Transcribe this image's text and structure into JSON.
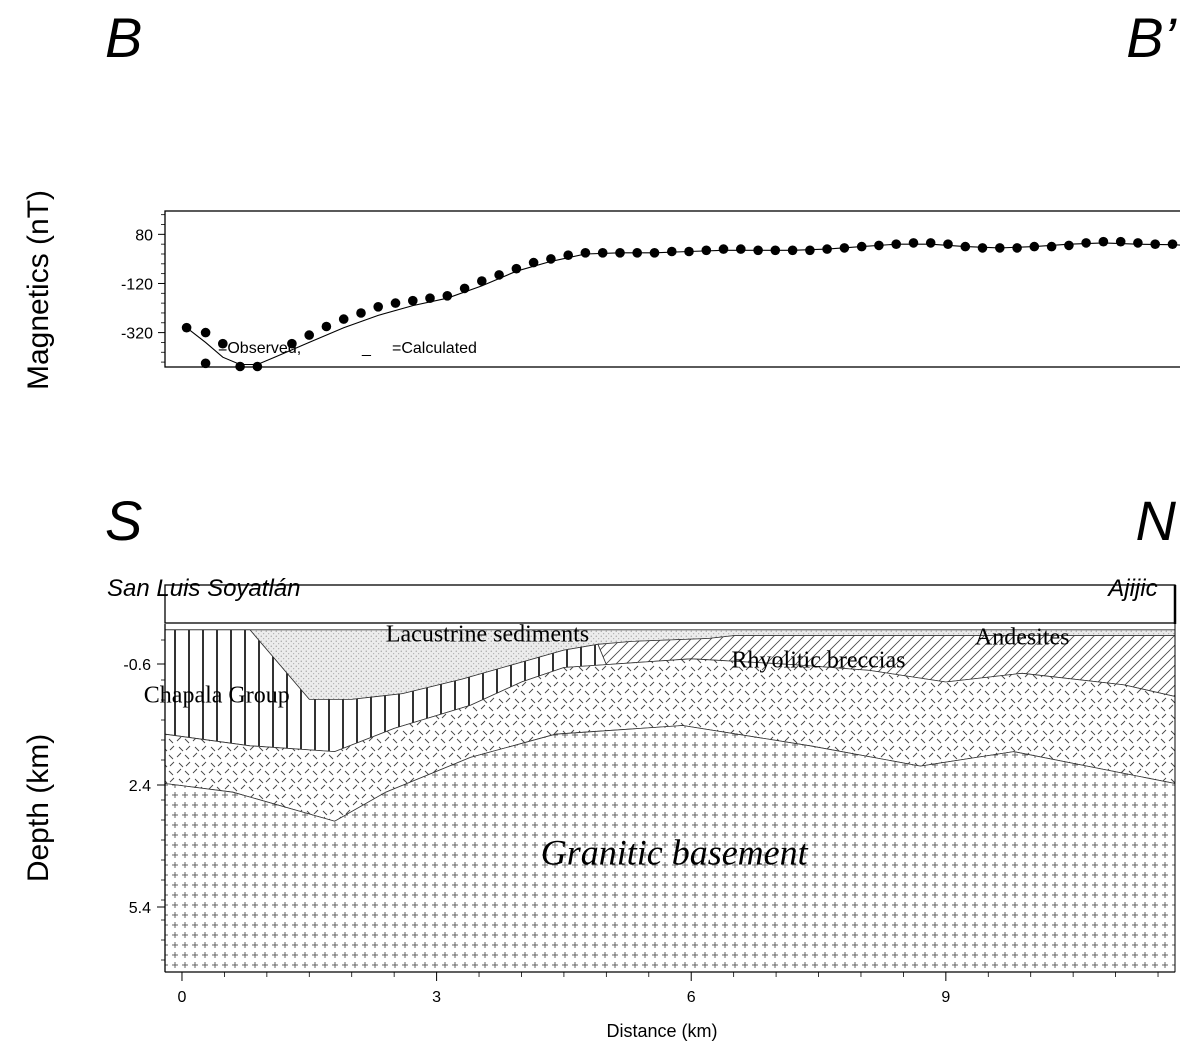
{
  "section_labels": {
    "start": "B",
    "end": "B’",
    "south": "S",
    "north": "N"
  },
  "chart_data": [
    {
      "type": "scatter",
      "ylabel": "Magnetics (nT)",
      "xlim": [
        -0.25,
        11.6
      ],
      "ylim": [
        -460,
        175
      ],
      "yticks": [
        80,
        -120,
        -320
      ],
      "legend": {
        "observed": "=Observed,",
        "calculated_marker": "_",
        "calculated": "=Calculated",
        "placement": "bottom-left"
      },
      "series": [
        {
          "name": "Observed",
          "style": "filled circles",
          "points": [
            [
              0.0,
              -300
            ],
            [
              0.22,
              -320
            ],
            [
              0.22,
              -445
            ],
            [
              0.42,
              -365
            ],
            [
              0.62,
              -458
            ],
            [
              0.82,
              -458
            ],
            [
              1.22,
              -365
            ],
            [
              1.42,
              -330
            ],
            [
              1.62,
              -295
            ],
            [
              1.82,
              -265
            ],
            [
              2.02,
              -240
            ],
            [
              2.22,
              -215
            ],
            [
              2.42,
              -200
            ],
            [
              2.62,
              -190
            ],
            [
              2.82,
              -180
            ],
            [
              3.02,
              -170
            ],
            [
              3.22,
              -140
            ],
            [
              3.42,
              -110
            ],
            [
              3.62,
              -85
            ],
            [
              3.82,
              -60
            ],
            [
              4.02,
              -35
            ],
            [
              4.22,
              -20
            ],
            [
              4.42,
              -5
            ],
            [
              4.62,
              5
            ],
            [
              4.82,
              5
            ],
            [
              5.02,
              5
            ],
            [
              5.22,
              5
            ],
            [
              5.42,
              5
            ],
            [
              5.62,
              10
            ],
            [
              5.82,
              10
            ],
            [
              6.02,
              15
            ],
            [
              6.22,
              20
            ],
            [
              6.42,
              20
            ],
            [
              6.62,
              15
            ],
            [
              6.82,
              15
            ],
            [
              7.02,
              15
            ],
            [
              7.22,
              15
            ],
            [
              7.42,
              20
            ],
            [
              7.62,
              25
            ],
            [
              7.82,
              30
            ],
            [
              8.02,
              35
            ],
            [
              8.22,
              40
            ],
            [
              8.42,
              45
            ],
            [
              8.62,
              45
            ],
            [
              8.82,
              40
            ],
            [
              9.02,
              30
            ],
            [
              9.22,
              25
            ],
            [
              9.42,
              25
            ],
            [
              9.62,
              25
            ],
            [
              9.82,
              30
            ],
            [
              10.02,
              30
            ],
            [
              10.22,
              35
            ],
            [
              10.42,
              45
            ],
            [
              10.62,
              50
            ],
            [
              10.82,
              50
            ],
            [
              11.02,
              45
            ],
            [
              11.22,
              40
            ],
            [
              11.42,
              40
            ],
            [
              11.62,
              35
            ],
            [
              11.82,
              30
            ],
            [
              12.02,
              25
            ]
          ]
        },
        {
          "name": "Calculated",
          "style": "thin line",
          "points": [
            [
              0.0,
              -300
            ],
            [
              0.22,
              -360
            ],
            [
              0.42,
              -420
            ],
            [
              0.62,
              -450
            ],
            [
              0.82,
              -450
            ],
            [
              1.02,
              -420
            ],
            [
              1.42,
              -360
            ],
            [
              1.82,
              -300
            ],
            [
              2.22,
              -250
            ],
            [
              2.62,
              -210
            ],
            [
              3.02,
              -180
            ],
            [
              3.42,
              -130
            ],
            [
              3.82,
              -70
            ],
            [
              4.22,
              -30
            ],
            [
              4.62,
              0
            ],
            [
              5.02,
              5
            ],
            [
              5.42,
              5
            ],
            [
              5.82,
              10
            ],
            [
              6.22,
              15
            ],
            [
              6.62,
              15
            ],
            [
              7.02,
              15
            ],
            [
              7.42,
              20
            ],
            [
              7.82,
              30
            ],
            [
              8.22,
              40
            ],
            [
              8.62,
              40
            ],
            [
              9.02,
              30
            ],
            [
              9.42,
              25
            ],
            [
              9.82,
              30
            ],
            [
              10.22,
              40
            ],
            [
              10.62,
              45
            ],
            [
              11.02,
              40
            ],
            [
              11.42,
              38
            ],
            [
              11.82,
              30
            ],
            [
              12.02,
              25
            ]
          ]
        }
      ]
    },
    {
      "type": "area",
      "subtype": "geologic cross-section",
      "ylabel": "Depth (km)",
      "xlabel": "Distance (km)",
      "xlim": [
        -0.2,
        11.7
      ],
      "xticks": [
        0,
        3,
        6,
        9
      ],
      "ylim": [
        0.5,
        6.5
      ],
      "y_inverted": true,
      "yticks": [
        -0.6,
        2.4,
        5.4
      ],
      "y_tick_labels": [
        "-0.6",
        "2.4",
        "5.4"
      ],
      "localities": [
        {
          "name": "San Luis Soyatlán",
          "x": 0.0
        },
        {
          "name": "Ajijic",
          "x": 11.2
        }
      ],
      "units": [
        {
          "name": "Lacustrine sediments",
          "pattern": "fine stipple",
          "label_at": [
            3.6,
            0.8
          ],
          "top": [
            [
              -0.2,
              0.6
            ],
            [
              11.7,
              0.6
            ]
          ],
          "bottom": [
            [
              0.8,
              0.6
            ],
            [
              1.5,
              1.8
            ],
            [
              2.0,
              1.8
            ],
            [
              2.6,
              1.7
            ],
            [
              3.3,
              1.45
            ],
            [
              3.9,
              1.2
            ],
            [
              4.5,
              0.95
            ],
            [
              4.9,
              0.85
            ],
            [
              5.0,
              0.85
            ],
            [
              5.3,
              0.8
            ],
            [
              6.2,
              0.75
            ],
            [
              6.5,
              0.7
            ],
            [
              11.7,
              0.7
            ]
          ]
        },
        {
          "name": "Andesites",
          "pattern": "diagonal hatch",
          "label_at": [
            9.9,
            0.85
          ],
          "top": [
            [
              4.9,
              0.85
            ],
            [
              5.3,
              0.8
            ],
            [
              6.2,
              0.75
            ],
            [
              6.5,
              0.7
            ],
            [
              11.7,
              0.7
            ]
          ],
          "bottom": [
            [
              4.9,
              0.85
            ],
            [
              5.0,
              1.2
            ],
            [
              6.0,
              1.1
            ],
            [
              7.2,
              1.2
            ],
            [
              8.1,
              1.3
            ],
            [
              9.0,
              1.5
            ],
            [
              9.9,
              1.35
            ],
            [
              11.1,
              1.55
            ],
            [
              11.7,
              1.75
            ]
          ]
        },
        {
          "name": "Chapala Group",
          "pattern": "vertical lines",
          "label_at": [
            -0.45,
            1.85
          ],
          "top": [
            [
              -0.2,
              0.6
            ],
            [
              0.8,
              0.6
            ],
            [
              1.5,
              1.8
            ],
            [
              2.0,
              1.8
            ],
            [
              2.6,
              1.7
            ],
            [
              3.3,
              1.45
            ],
            [
              3.9,
              1.2
            ],
            [
              4.5,
              0.95
            ],
            [
              4.9,
              0.85
            ],
            [
              5.0,
              1.2
            ]
          ],
          "bottom": [
            [
              -0.2,
              2.4
            ],
            [
              0.8,
              2.6
            ],
            [
              1.8,
              2.7
            ],
            [
              2.5,
              2.3
            ],
            [
              3.4,
              1.9
            ],
            [
              4.0,
              1.5
            ],
            [
              4.5,
              1.25
            ],
            [
              5.0,
              1.2
            ]
          ]
        },
        {
          "name": "Rhyolitic breccias",
          "pattern": "dashed hatch",
          "label_at": [
            7.5,
            1.25
          ],
          "top": [
            [
              -0.2,
              2.4
            ],
            [
              0.8,
              2.6
            ],
            [
              1.8,
              2.7
            ],
            [
              2.5,
              2.3
            ],
            [
              3.4,
              1.9
            ],
            [
              4.0,
              1.5
            ],
            [
              4.5,
              1.25
            ],
            [
              5.0,
              1.2
            ],
            [
              6.0,
              1.1
            ],
            [
              7.2,
              1.2
            ],
            [
              8.1,
              1.3
            ],
            [
              9.0,
              1.5
            ],
            [
              9.9,
              1.35
            ],
            [
              11.1,
              1.55
            ],
            [
              11.7,
              1.75
            ]
          ],
          "bottom": [
            [
              -0.2,
              3.25
            ],
            [
              0.6,
              3.4
            ],
            [
              1.8,
              3.9
            ],
            [
              2.4,
              3.4
            ],
            [
              3.4,
              2.8
            ],
            [
              4.4,
              2.4
            ],
            [
              5.9,
              2.25
            ],
            [
              7.4,
              2.6
            ],
            [
              8.7,
              2.95
            ],
            [
              9.8,
              2.7
            ],
            [
              11.7,
              3.25
            ]
          ]
        },
        {
          "name": "Granitic basement",
          "pattern": "crosses",
          "label_at": [
            5.8,
            4.65
          ],
          "top": [
            [
              -0.2,
              3.25
            ],
            [
              0.6,
              3.4
            ],
            [
              1.8,
              3.9
            ],
            [
              2.4,
              3.4
            ],
            [
              3.4,
              2.8
            ],
            [
              4.4,
              2.4
            ],
            [
              5.9,
              2.25
            ],
            [
              7.4,
              2.6
            ],
            [
              8.7,
              2.95
            ],
            [
              9.8,
              2.7
            ],
            [
              11.7,
              3.25
            ]
          ],
          "bottom": [
            [
              -0.2,
              6.5
            ],
            [
              11.7,
              6.5
            ]
          ]
        }
      ]
    }
  ]
}
